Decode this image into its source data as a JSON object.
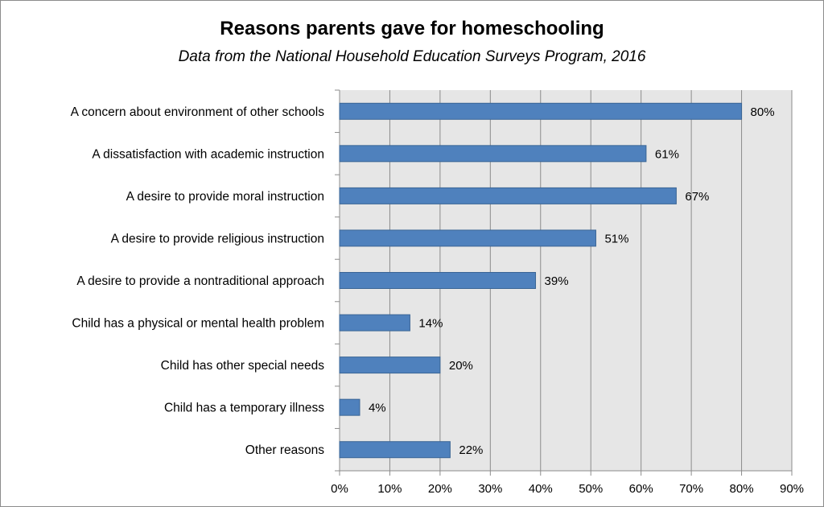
{
  "chart_data": {
    "type": "bar",
    "orientation": "horizontal",
    "title": "Reasons parents gave for homeschooling",
    "subtitle": "Data from the National Household Education Surveys Program, 2016",
    "categories": [
      "A concern about environment of other schools",
      "A dissatisfaction with academic instruction",
      "A desire to provide moral instruction",
      "A desire to provide religious instruction",
      "A desire to provide a nontraditional approach",
      "Child has a physical or mental health problem",
      "Child has other special needs",
      "Child has a temporary illness",
      "Other reasons"
    ],
    "values": [
      80,
      61,
      67,
      51,
      39,
      14,
      20,
      4,
      22
    ],
    "data_labels": [
      "80%",
      "61%",
      "67%",
      "51%",
      "39%",
      "14%",
      "20%",
      "4%",
      "22%"
    ],
    "xlim": [
      0,
      90
    ],
    "x_ticks": [
      0,
      10,
      20,
      30,
      40,
      50,
      60,
      70,
      80,
      90
    ],
    "x_tick_labels": [
      "0%",
      "10%",
      "20%",
      "30%",
      "40%",
      "50%",
      "60%",
      "70%",
      "80%",
      "90%"
    ],
    "xlabel": "",
    "ylabel": "",
    "grid": "vertical",
    "legend": "none",
    "colors": {
      "bar_fill": "#4f81bd",
      "bar_stroke": "#3a6595",
      "plot_background": "#e6e6e6",
      "gridline": "#8c8c8c"
    }
  }
}
